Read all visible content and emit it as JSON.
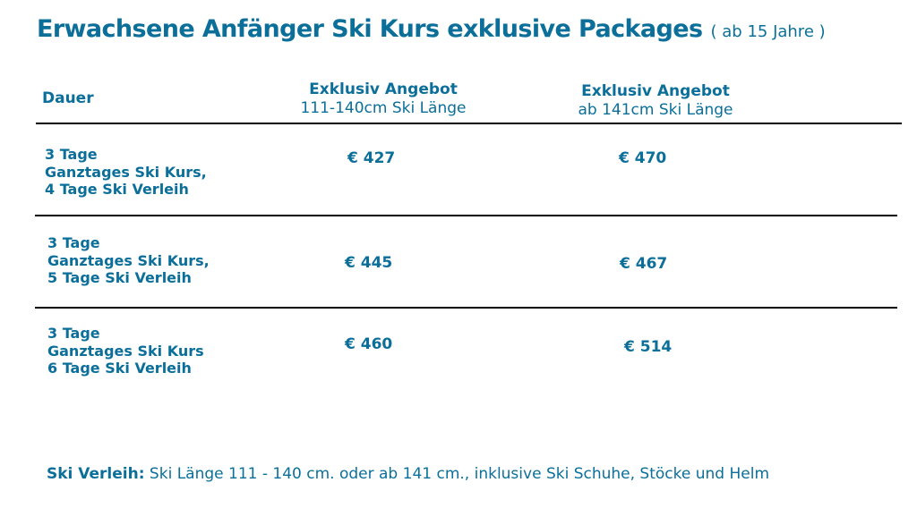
{
  "title": {
    "main": "Erwachsene Anfänger Ski Kurs exklusive Packages",
    "sub": "( ab 15 Jahre )"
  },
  "table": {
    "header": {
      "dauer": "Dauer",
      "col1": {
        "line1": "Exklusiv Angebot",
        "line2": "111-140cm Ski Länge"
      },
      "col2": {
        "line1": "Exklusiv Angebot",
        "line2": "ab 141cm Ski Länge"
      }
    },
    "rows": [
      {
        "line1": "3 Tage",
        "line2": "Ganztages Ski Kurs,",
        "line3": "4 Tage Ski Verleih",
        "price1": "€ 427",
        "price2": "€ 470"
      },
      {
        "line1": "3 Tage",
        "line2": "Ganztages Ski Kurs,",
        "line3": "5 Tage Ski Verleih",
        "price1": "€ 445",
        "price2": "€ 467"
      },
      {
        "line1": "3 Tage",
        "line2": "Ganztages Ski Kurs",
        "line3": "6 Tage Ski Verleih",
        "price1": "€ 460",
        "price2": "€ 514"
      }
    ]
  },
  "footer": {
    "label": "Ski Verleih:",
    "text": " Ski Länge 111 - 140 cm. oder ab 141 cm., inklusive Ski Schuhe, Stöcke und Helm"
  },
  "colors": {
    "text": "#0b6f9a",
    "rule": "#000000",
    "background": "#ffffff"
  }
}
